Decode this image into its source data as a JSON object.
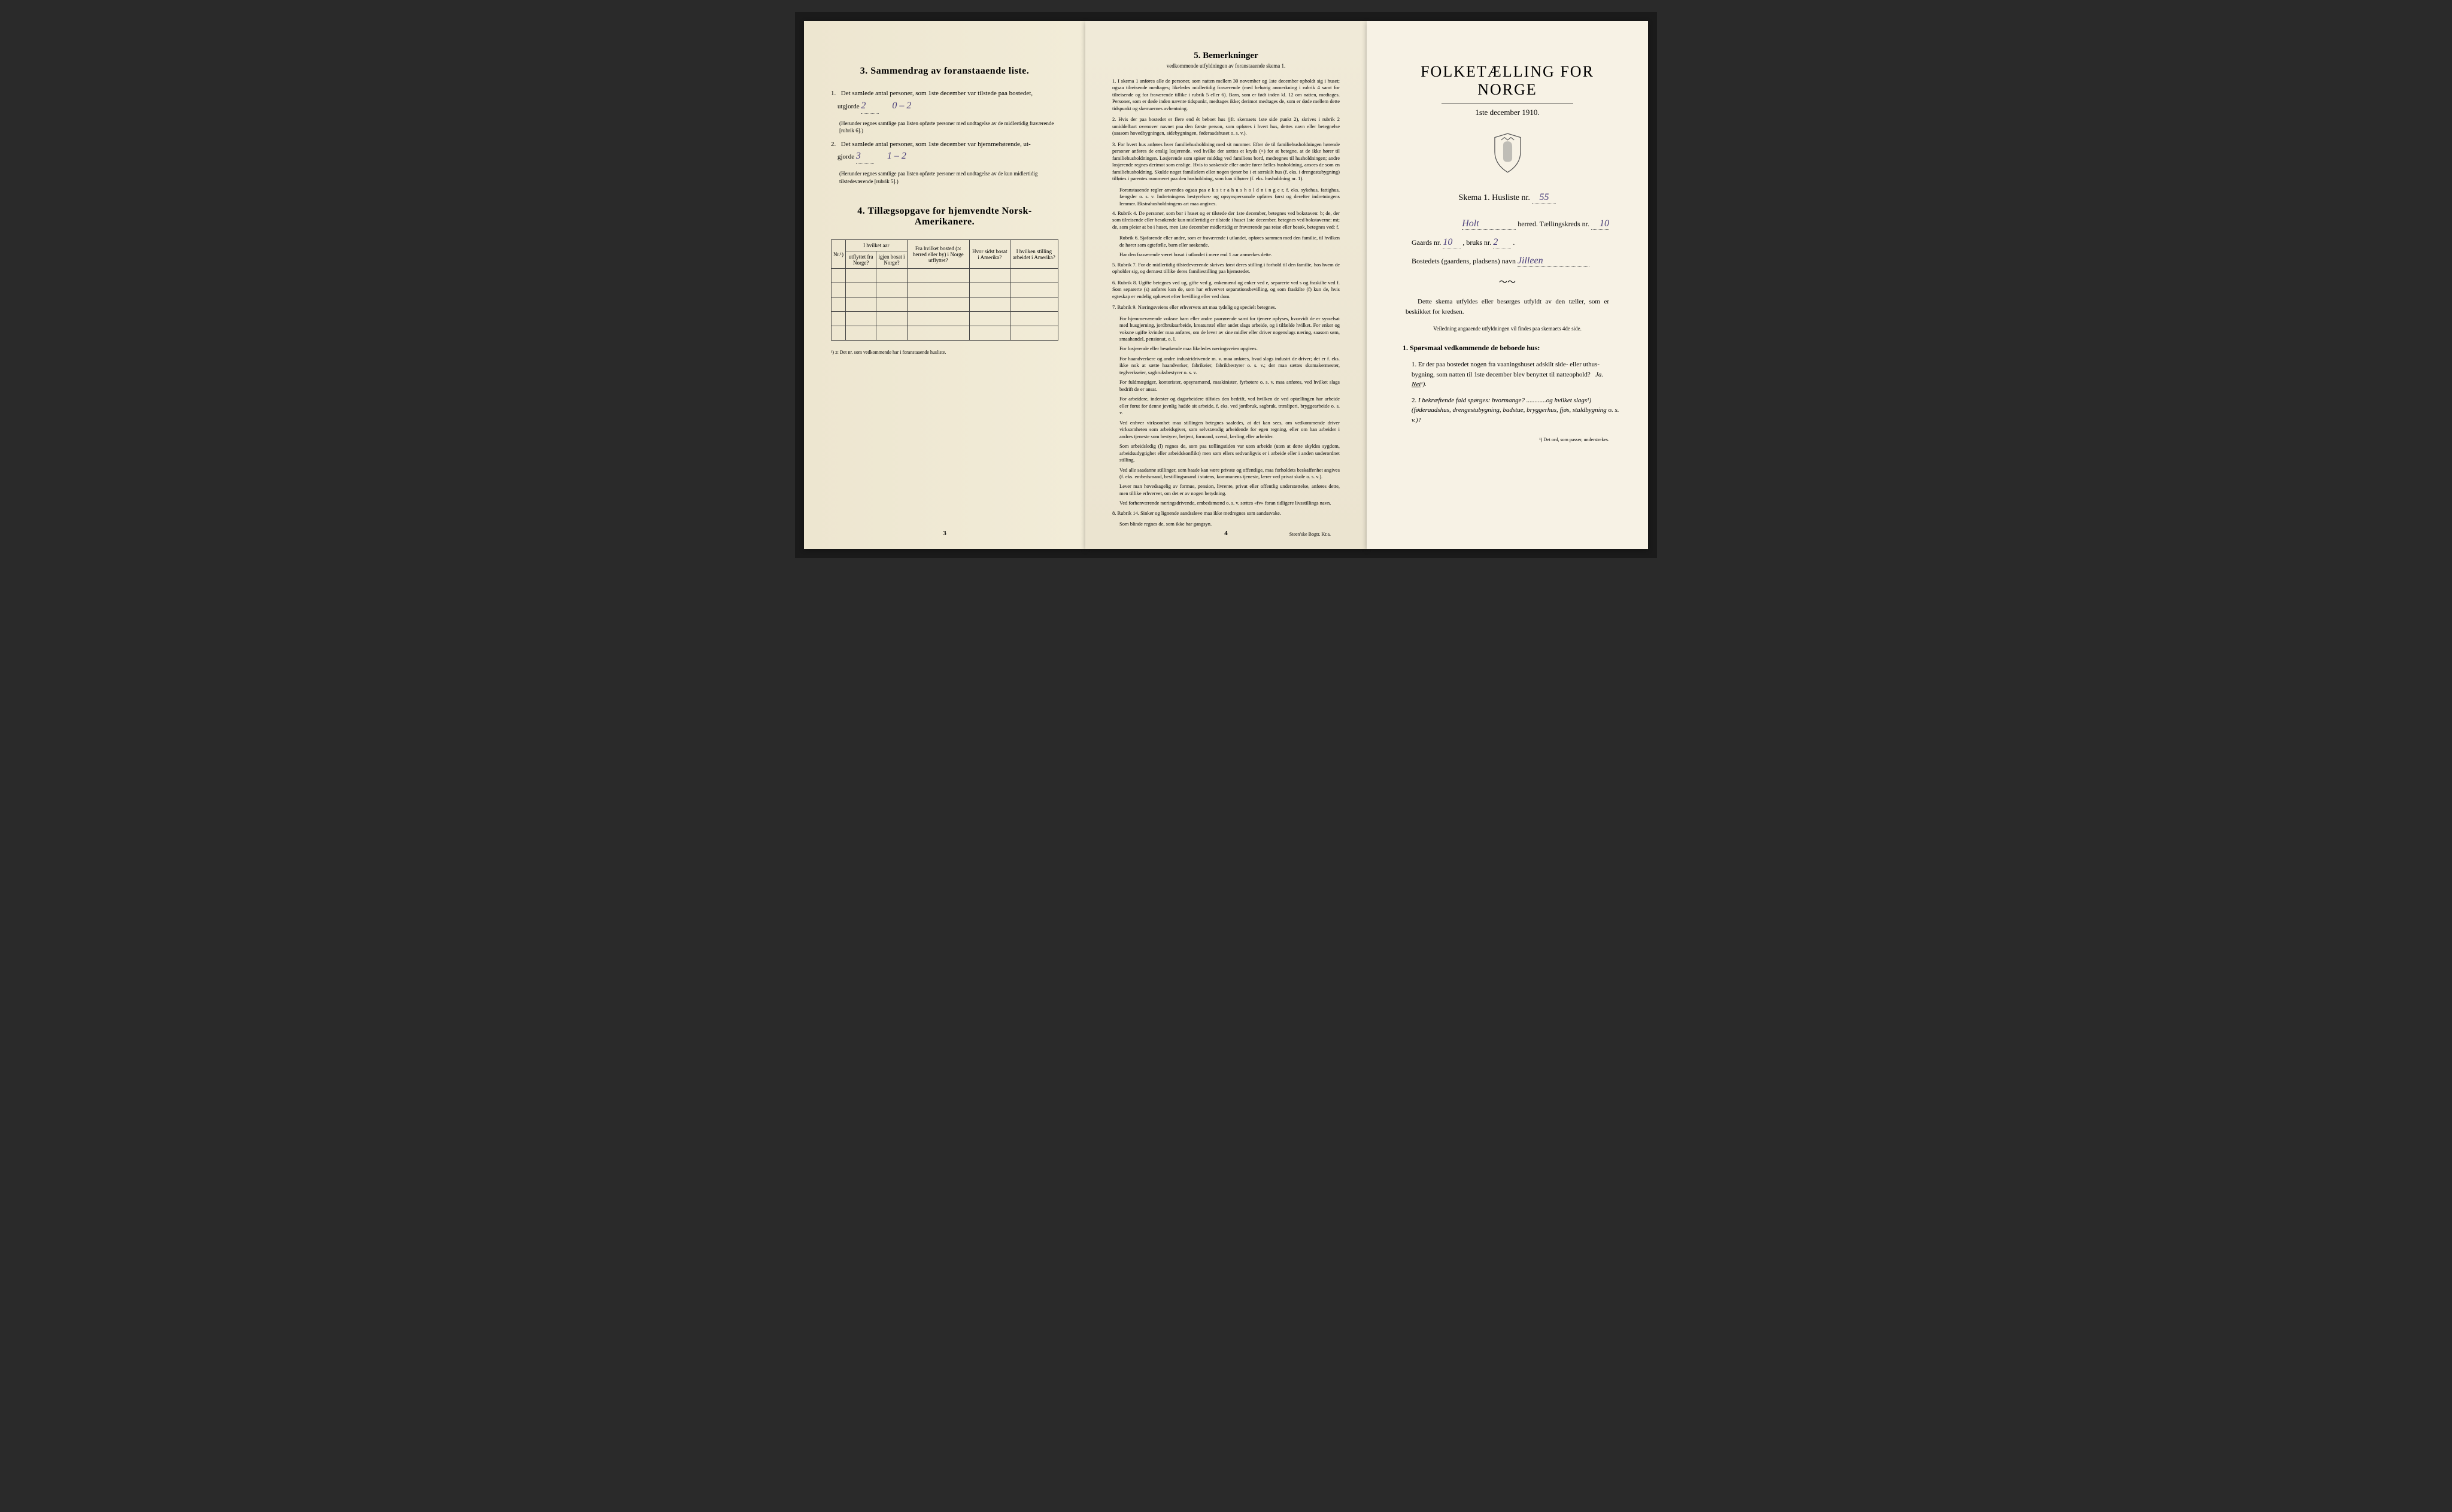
{
  "page1": {
    "section3_title": "3.   Sammendrag av foranstaaende liste.",
    "item1_prefix": "1.",
    "item1_text": "Det samlede antal personer, som 1ste december var tilstede paa bostedet,",
    "item1_line2": "utgjorde ",
    "item1_hand1": "2",
    "item1_hand2": "0 – 2",
    "item1_note": "(Herunder regnes samtlige paa listen opførte personer med undtagelse av de midlertidig fraværende [rubrik 6].)",
    "item2_prefix": "2.",
    "item2_text": "Det samlede antal personer, som 1ste december var hjemmehørende, ut-",
    "item2_line2": "gjorde ",
    "item2_hand1": "3",
    "item2_hand2": "1 – 2",
    "item2_note": "(Herunder regnes samtlige paa listen opførte personer med undtagelse av de kun midlertidig tilstedeværende [rubrik 5].)",
    "section4_title": "4.   Tillægsopgave for hjemvendte Norsk-Amerikanere.",
    "table": {
      "h_nr": "Nr.¹)",
      "h_col1_top": "I hvilket aar",
      "h_col1a": "utflyttet fra Norge?",
      "h_col1b": "igjen bosat i Norge?",
      "h_col2": "Fra hvilket bosted (ɔ: herred eller by) i Norge utflyttet?",
      "h_col3": "Hvor sidst bosat i Amerika?",
      "h_col4": "I hvilken stilling arbeidet i Amerika?",
      "empty_rows": 5
    },
    "footnote": "¹) ɔ: Det nr. som vedkommende har i foranstaaende husliste.",
    "page_num": "3"
  },
  "page2": {
    "title": "5.    Bemerkninger",
    "subtitle": "vedkommende utfyldningen av foranstaaende skema 1.",
    "items": [
      {
        "n": "1.",
        "t": "I skema 1 anføres alle de personer, som natten mellem 30 november og 1ste december opholdt sig i huset; ogsaa tilreisende medtages; likeledes midlertidig fraværende (med behørig anmerkning i rubrik 4 samt for tilreisende og for fraværende tillike i rubrik 5 eller 6). Barn, som er født inden kl. 12 om natten, medtages. Personer, som er døde inden nævnte tidspunkt, medtages ikke; derimot medtages de, som er døde mellem dette tidspunkt og skemaernes avhentning."
      },
      {
        "n": "2.",
        "t": "Hvis der paa bostedet er flere end ét beboet hus (jfr. skemaets 1ste side punkt 2), skrives i rubrik 2 umiddelbart ovenover navnet paa den første person, som opføres i hvert hus, dettes navn eller betegnelse (saasom hovedbygningen, sidebygningen, føderaadshuset o. s. v.)."
      },
      {
        "n": "3.",
        "t": "For hvert hus anføres hver familiehusholdning med sit nummer. Efter de til familiehusholdningen hørende personer anføres de enslig losjerende, ved hvilke der sættes et kryds (×) for at betegne, at de ikke hører til familiehusholdningen. Losjerende som spiser middag ved familiens bord, medregnes til husholdningen; andre losjerende regnes derimot som enslige. Hvis to søskende eller andre fører fælles husholdning, ansees de som en familiehusholdning. Skulde noget familielem eller nogen tjener bo i et særskilt hus (f. eks. i drengestubygning) tilføies i parentes nummeret paa den husholdning, som han tilhører (f. eks. husholdning nr. 1)."
      },
      {
        "cont": true,
        "t": "Foranstaaende regler anvendes ogsaa paa e k s t r a h u s h o l d n i n g e r, f. eks. sykehus, fattighus, fængsler o. s. v. Indretningens bestyrelses- og opsynspersonale opføres først og derefter indretningens lemmer. Ekstrahusholdningens art maa angives."
      },
      {
        "n": "4.",
        "t": "Rubrik 4. De personer, som bor i huset og er tilstede der 1ste december, betegnes ved bokstaven: b; de, der som tilreisende eller besøkende kun midlertidig er tilstede i huset 1ste december, betegnes ved bokstaverne: mt; de, som pleier at bo i huset, men 1ste december midlertidig er fraværende paa reise eller besøk, betegnes ved: f."
      },
      {
        "cont": true,
        "t": "Rubrik 6. Sjøfarende eller andre, som er fraværende i utlandet, opføres sammen med den familie, til hvilken de hører som egtefælle, barn eller søskende."
      },
      {
        "cont": true,
        "t": "Har den fraværende været bosat i utlandet i mere end 1 aar anmerkes dette."
      },
      {
        "n": "5.",
        "t": "Rubrik 7. For de midlertidig tilstedeværende skrives først deres stilling i forhold til den familie, hos hvem de opholder sig, og dernæst tillike deres familiestilling paa hjemstedet."
      },
      {
        "n": "6.",
        "t": "Rubrik 8. Ugifte betegnes ved ug, gifte ved g, enkemænd og enker ved e, separerte ved s og fraskilte ved f. Som separerte (s) anføres kun de, som har erhvervet separationsbevilling, og som fraskilte (f) kun de, hvis egteskap er endelig ophævet efter bevilling eller ved dom."
      },
      {
        "n": "7.",
        "t": "Rubrik 9. Næringsveiens eller erhvervets art maa tydelig og specielt betegnes."
      },
      {
        "cont": true,
        "t": "For hjemmeværende voksne barn eller andre paarørende samt for tjenere oplyses, hvorvidt de er sysselsat med husgjerning, jordbruksarbeide, kreaturstel eller andet slags arbeide, og i tilfælde hvilket. For enker og voksne ugifte kvinder maa anføres, om de lever av sine midler eller driver nogenslags næring, saasom søm, smaahandel, pensionat, o. l."
      },
      {
        "cont": true,
        "t": "For losjerende eller besøkende maa likeledes næringsveien opgives."
      },
      {
        "cont": true,
        "t": "For haandverkere og andre industridrivende m. v. maa anføres, hvad slags industri de driver; det er f. eks. ikke nok at sætte haandverker, fabrikeier, fabrikbestyrer o. s. v.; der maa sættes skomakermester, teglverkseier, sagbruksbestyrer o. s. v."
      },
      {
        "cont": true,
        "t": "For fuldmægtiger, kontorister, opsynsmænd, maskinister, fyrbøtere o. s. v. maa anføres, ved hvilket slags bedrift de er ansat."
      },
      {
        "cont": true,
        "t": "For arbeidere, inderster og dagarbeidere tilføies den bedrift, ved hvilken de ved optællingen har arbeide eller forut for denne jevnlig hadde sit arbeide, f. eks. ved jordbruk, sagbruk, træsliperi, bryggearbeide o. s. v."
      },
      {
        "cont": true,
        "t": "Ved enhver virksomhet maa stillingen betegnes saaledes, at det kan sees, om vedkommende driver virksomheten som arbeidsgiver, som selvstændig arbeidende for egen regning, eller om han arbeider i andres tjeneste som bestyrer, betjent, formand, svend, lærling eller arbeider."
      },
      {
        "cont": true,
        "t": "Som arbeidsledig (l) regnes de, som paa tællingstiden var uten arbeide (uten at dette skyldes sygdom, arbeidsudygtighet eller arbeidskonflikt) men som ellers sedvanligvis er i arbeide eller i anden underordnet stilling."
      },
      {
        "cont": true,
        "t": "Ved alle saadanne stillinger, som baade kan være private og offentlige, maa forholdets beskaffenhet angives (f. eks. embedsmand, bestillingsmand i statens, kommunens tjeneste, lærer ved privat skole o. s. v.)."
      },
      {
        "cont": true,
        "t": "Lever man hovedsagelig av formue, pension, livrente, privat eller offentlig understøttelse, anføres dette, men tillike erhvervet, om det er av nogen betydning."
      },
      {
        "cont": true,
        "t": "Ved forhenværende næringsdrivende, embedsmænd o. s. v. sættes «fv» foran tidligere livsstillings navn."
      },
      {
        "n": "8.",
        "t": "Rubrik 14. Sinker og lignende aandssløve maa ikke medregnes som aandssvake."
      },
      {
        "cont": true,
        "t": "Som blinde regnes de, som ikke har gangsyn."
      }
    ],
    "page_num": "4",
    "printer": "Steen'ske Bogtr.   Kr.a."
  },
  "page3": {
    "main_title": "FOLKETÆLLING FOR NORGE",
    "date": "1ste december 1910.",
    "skema_label": "Skema 1.   Husliste nr.",
    "husliste_nr": "55",
    "herred_hand": "Holt",
    "herred_label": "herred.   Tællingskreds nr.",
    "kreds_nr": "10",
    "gaards_label": "Gaards nr.",
    "gaards_nr": "10",
    "bruks_label": ", bruks nr.",
    "bruks_nr": "2",
    "bosted_label": "Bostedets (gaardens, pladsens) navn",
    "bosted_hand": "Jilleen",
    "body1": "Dette skema utfyldes eller besørges utfyldt av den tæller, som er beskikket for kredsen.",
    "body2": "Veiledning angaaende utfyldningen vil findes paa skemaets 4de side.",
    "q_title": "1.  Spørsmaal vedkommende de beboede hus:",
    "q1_num": "1.",
    "q1": "Er der paa bostedet nogen fra vaaningshuset adskilt side- eller uthus-bygning, som natten til 1ste december blev benyttet til natteophold?   Ja.   Nei¹).",
    "q2_num": "2.",
    "q2": "I bekræftende fald spørges: hvormange? ............og hvilket slags¹) (føderaadshus, drengestubygning, badstue, bryggerhus, fjøs, staldbygning o. s. v.)?",
    "footnote": "¹) Det ord, som passer, understrekes."
  },
  "colors": {
    "text": "#2a2620",
    "handwriting": "#4a3f7a",
    "paper1": "#f2ecd8",
    "paper2": "#ebe4d0",
    "paper3": "#f7f2e5",
    "border": "#444444"
  }
}
